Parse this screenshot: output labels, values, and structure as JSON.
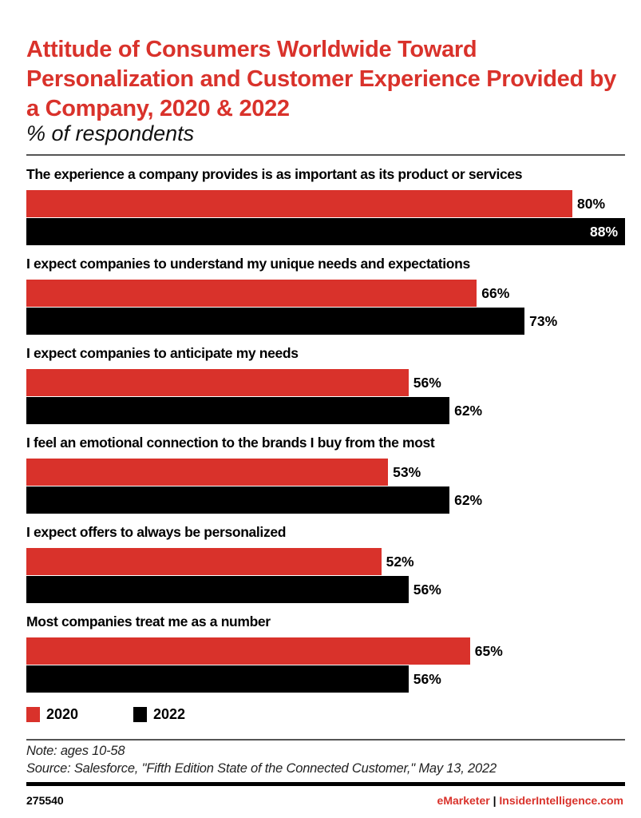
{
  "chart_data": {
    "type": "bar",
    "orientation": "horizontal",
    "title": "Attitude of Consumers Worldwide Toward Personalization and Customer Experience Provided by a Company, 2020 & 2022",
    "subtitle": "% of respondents",
    "categories": [
      "The experience a company provides is as important as its product or services",
      "I expect companies to understand my unique needs and expectations",
      "I expect companies to anticipate my needs",
      "I feel an emotional connection to the brands I buy from the most",
      "I expect offers to always be personalized",
      "Most companies treat me as a number"
    ],
    "series": [
      {
        "name": "2020",
        "color": "#d9322b",
        "values": [
          80,
          66,
          56,
          53,
          52,
          65
        ],
        "labels": [
          "80%",
          "66%",
          "56%",
          "53%",
          "52%",
          "65%"
        ]
      },
      {
        "name": "2022",
        "color": "#000000",
        "values": [
          88,
          73,
          62,
          62,
          56,
          56
        ],
        "labels": [
          "88%",
          "73%",
          "62%",
          "62%",
          "56%",
          "56%"
        ]
      }
    ],
    "legend": "bottom-left",
    "grid": false
  },
  "footer": {
    "note": "Note: ages 10-58",
    "source": "Source: Salesforce, \"Fifth Edition State of the Connected Customer,\" May 13, 2022",
    "id": "275540",
    "brand1": "eMarketer",
    "separator": "|",
    "brand2": "InsiderIntelligence.com"
  }
}
